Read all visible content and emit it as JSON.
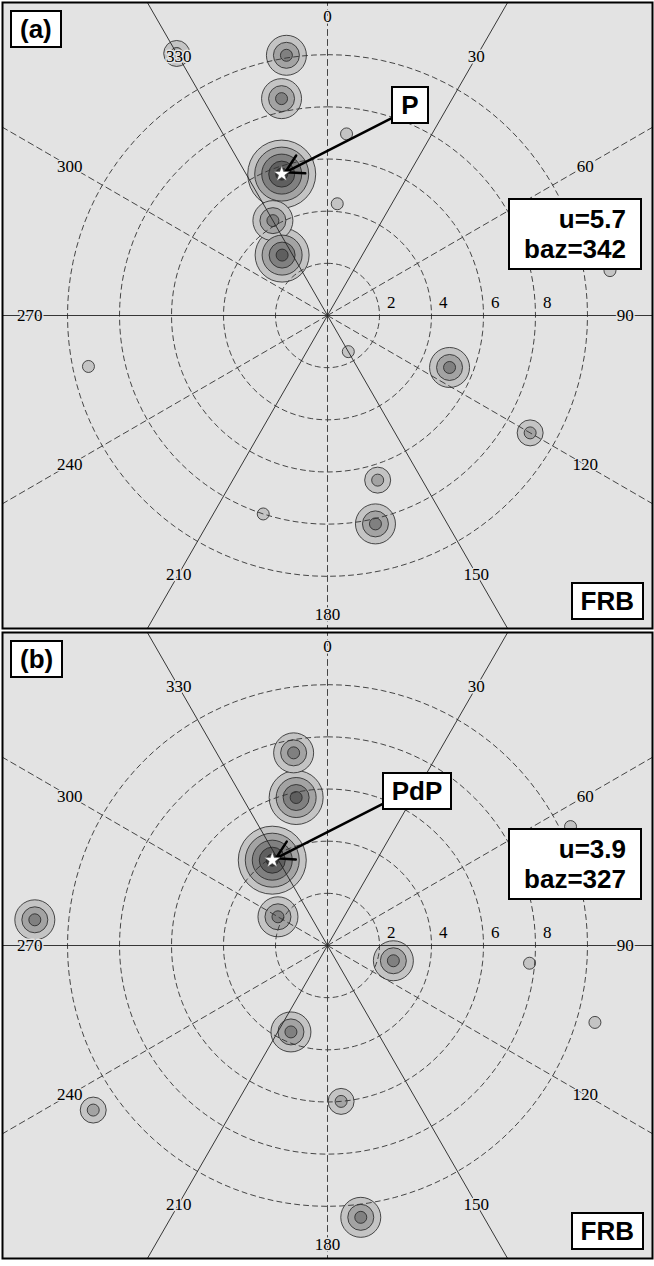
{
  "chart_data": [
    {
      "type": "polar_contour",
      "panel": "(a)",
      "station": "FRB",
      "peak": {
        "phase": "P",
        "u": 5.7,
        "baz": 342,
        "text": [
          "u=5.7",
          "baz=342"
        ],
        "marker": "star"
      },
      "xlim": [
        -12.5,
        12.5
      ],
      "ylim": [
        -12,
        12
      ],
      "rlim": [
        0,
        10
      ],
      "rticks": [
        2,
        4,
        6,
        8
      ],
      "azimuth_ticks": [
        0,
        30,
        60,
        90,
        120,
        150,
        180,
        210,
        240,
        270,
        300,
        330
      ],
      "maxima": [
        {
          "u": 10.1,
          "baz": 351,
          "level": 3
        },
        {
          "u": 8.5,
          "baz": 348,
          "level": 3
        },
        {
          "u": 5.7,
          "baz": 342,
          "level": 5
        },
        {
          "u": 4.2,
          "baz": 330,
          "level": 3
        },
        {
          "u": 2.9,
          "baz": 323,
          "level": 4
        },
        {
          "u": 11.6,
          "baz": 330,
          "level": 2
        },
        {
          "u": 5.1,
          "baz": 113,
          "level": 3
        },
        {
          "u": 9,
          "baz": 120,
          "level": 2
        },
        {
          "u": 11,
          "baz": 81,
          "level": 1
        },
        {
          "u": 8.2,
          "baz": 167,
          "level": 3
        },
        {
          "u": 6.6,
          "baz": 163,
          "level": 2
        },
        {
          "u": 8,
          "baz": 198,
          "level": 1
        },
        {
          "u": 9.4,
          "baz": 258,
          "level": 1
        },
        {
          "u": 1.6,
          "baz": 150,
          "level": 1
        },
        {
          "u": 4.3,
          "baz": 5,
          "level": 1
        },
        {
          "u": 7,
          "baz": 6,
          "level": 1
        }
      ]
    },
    {
      "type": "polar_contour",
      "panel": "(b)",
      "station": "FRB",
      "peak": {
        "phase": "PdP",
        "u": 3.9,
        "baz": 327,
        "text": [
          "u=3.9",
          "baz=327"
        ],
        "marker": "star"
      },
      "xlim": [
        -12.5,
        12.5
      ],
      "ylim": [
        -12,
        12
      ],
      "rlim": [
        0,
        10
      ],
      "rticks": [
        2,
        4,
        6,
        8
      ],
      "azimuth_ticks": [
        0,
        30,
        60,
        90,
        120,
        150,
        180,
        210,
        240,
        270,
        300,
        330
      ],
      "maxima": [
        {
          "u": 5.8,
          "baz": 348,
          "level": 4
        },
        {
          "u": 7.5,
          "baz": 350,
          "level": 3
        },
        {
          "u": 3.9,
          "baz": 327,
          "level": 5
        },
        {
          "u": 2.2,
          "baz": 300,
          "level": 3
        },
        {
          "u": 3.6,
          "baz": 203,
          "level": 3
        },
        {
          "u": 11.3,
          "baz": 275,
          "level": 3
        },
        {
          "u": 2.6,
          "baz": 103,
          "level": 3
        },
        {
          "u": 10.5,
          "baz": 173,
          "level": 3
        },
        {
          "u": 7.8,
          "baz": 95,
          "level": 1
        },
        {
          "u": 10.7,
          "baz": 106,
          "level": 1
        },
        {
          "u": 10.4,
          "baz": 64,
          "level": 1
        },
        {
          "u": 11,
          "baz": 235,
          "level": 2
        },
        {
          "u": 6,
          "baz": 175,
          "level": 2
        }
      ]
    }
  ]
}
